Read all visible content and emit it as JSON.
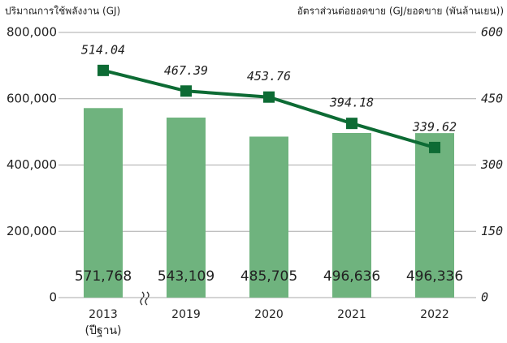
{
  "chart_data": {
    "type": "bar_line",
    "y_axis_label": "ปริมาณการใช้พลังงาน (GJ)",
    "y2_axis_label": "อัตราส่วนต่อยอดขาย (GJ/ยอดขาย (พันล้านเยน))",
    "categories": [
      "2013",
      "2019",
      "2020",
      "2021",
      "2022"
    ],
    "x_note": "(ปีฐาน)",
    "series": [
      {
        "name": "ปริมาณการใช้พลังงาน",
        "kind": "bar",
        "color": "#6fb37e",
        "values": [
          571768,
          543109,
          485705,
          496636,
          496336
        ],
        "value_labels": [
          "571,768",
          "543,109",
          "485,705",
          "496,636",
          "496,336"
        ]
      },
      {
        "name": "อัตราส่วนต่อยอดขาย",
        "kind": "line",
        "axis": "y2",
        "color": "#0d6b34",
        "values": [
          514.04,
          467.39,
          453.76,
          394.18,
          339.62
        ]
      }
    ],
    "ylim": [
      0,
      800000
    ],
    "yticks": [
      0,
      {
        "value": 200000,
        "label": "200,000"
      },
      {
        "value": 400000,
        "label": "400,000"
      },
      {
        "value": 600000,
        "label": "600,000"
      },
      {
        "value": 800000,
        "label": "800,000"
      }
    ],
    "y2lim": [
      0,
      600
    ],
    "y2ticks": [
      0,
      150,
      300,
      450,
      600
    ],
    "grid": true
  }
}
